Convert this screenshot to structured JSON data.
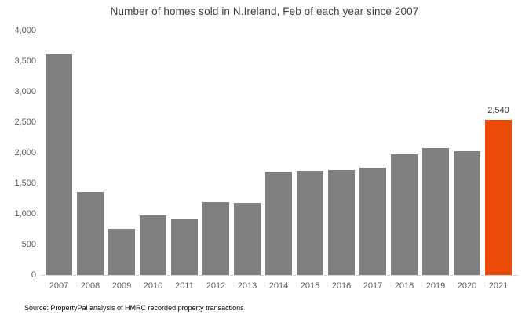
{
  "chart": {
    "source_note": "Source: PropertyPal analysis of HMRC recorded property transactions"
  },
  "chart_data": {
    "type": "bar",
    "title": "Number of homes sold in N.Ireland, Feb of each year since 2007",
    "xlabel": "",
    "ylabel": "",
    "categories": [
      "2007",
      "2008",
      "2009",
      "2010",
      "2011",
      "2012",
      "2013",
      "2014",
      "2015",
      "2016",
      "2017",
      "2018",
      "2019",
      "2020",
      "2021"
    ],
    "values": [
      3610,
      1360,
      760,
      980,
      910,
      1190,
      1180,
      1690,
      1700,
      1720,
      1750,
      1970,
      2080,
      2020,
      2540
    ],
    "highlight_index": 14,
    "highlight_label": "2,540",
    "ylim": [
      0,
      4000
    ],
    "yticks": [
      {
        "value": 0,
        "label": "0"
      },
      {
        "value": 500,
        "label": "500"
      },
      {
        "value": 1000,
        "label": "1,000"
      },
      {
        "value": 1500,
        "label": "1,500"
      },
      {
        "value": 2000,
        "label": "2,000"
      },
      {
        "value": 2500,
        "label": "2,500"
      },
      {
        "value": 3000,
        "label": "3,000"
      },
      {
        "value": 3500,
        "label": "3,500"
      },
      {
        "value": 4000,
        "label": "4,000"
      }
    ],
    "grid": false,
    "legend": "none",
    "colors": {
      "bar": "#808080",
      "highlight": "#EC4B09",
      "axis_line": "#D9D9D9",
      "tick_text": "#595959",
      "title_text": "#404040",
      "data_label_text": "#404040",
      "source_text": "#000000"
    }
  }
}
